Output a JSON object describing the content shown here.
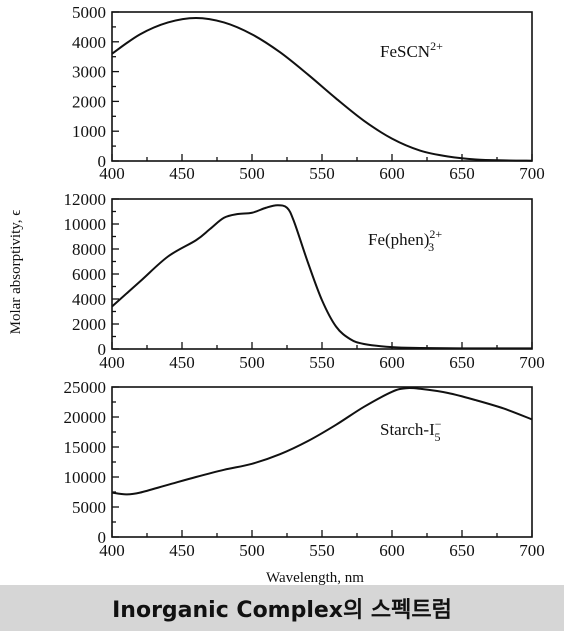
{
  "chart_data": [
    {
      "type": "line",
      "series": [
        {
          "name": "FeSCN²⁺",
          "x": [
            400,
            420,
            440,
            460,
            480,
            500,
            520,
            540,
            560,
            580,
            600,
            620,
            640,
            660,
            680,
            700
          ],
          "y": [
            3600,
            4250,
            4650,
            4800,
            4650,
            4250,
            3650,
            2900,
            2100,
            1350,
            750,
            350,
            150,
            50,
            20,
            10
          ]
        }
      ],
      "label": {
        "text": "FeSCN",
        "sup": "2+"
      },
      "xlim": [
        400,
        700
      ],
      "ylim": [
        0,
        5000
      ],
      "xticks": [
        400,
        450,
        500,
        550,
        600,
        650,
        700
      ],
      "yticks": [
        0,
        1000,
        2000,
        3000,
        4000,
        5000
      ]
    },
    {
      "type": "line",
      "series": [
        {
          "name": "Fe(phen)₃²⁺",
          "x": [
            400,
            420,
            440,
            460,
            470,
            480,
            490,
            500,
            510,
            518,
            525,
            530,
            540,
            550,
            560,
            570,
            580,
            600,
            620,
            650,
            700
          ],
          "y": [
            3400,
            5400,
            7400,
            8700,
            9600,
            10500,
            10800,
            10900,
            11300,
            11500,
            11300,
            10200,
            6900,
            3900,
            1800,
            800,
            400,
            150,
            80,
            50,
            50
          ]
        }
      ],
      "label": {
        "text": "Fe(phen)",
        "sub": "3",
        "sup": "2+"
      },
      "xlim": [
        400,
        700
      ],
      "ylim": [
        0,
        12000
      ],
      "xticks": [
        400,
        450,
        500,
        550,
        600,
        650,
        700
      ],
      "yticks": [
        0,
        2000,
        4000,
        6000,
        8000,
        10000,
        12000
      ]
    },
    {
      "type": "line",
      "series": [
        {
          "name": "Starch-I₅⁻",
          "x": [
            400,
            410,
            420,
            440,
            460,
            480,
            500,
            520,
            540,
            560,
            580,
            600,
            610,
            620,
            640,
            660,
            680,
            700
          ],
          "y": [
            7400,
            7100,
            7400,
            8700,
            10000,
            11200,
            12200,
            13800,
            16000,
            18700,
            21700,
            24200,
            24800,
            24700,
            24000,
            22800,
            21400,
            19600
          ]
        }
      ],
      "label": {
        "text": "Starch-I",
        "sub": "5",
        "sup": "−"
      },
      "xlim": [
        400,
        700
      ],
      "ylim": [
        0,
        25000
      ],
      "xticks": [
        400,
        450,
        500,
        550,
        600,
        650,
        700
      ],
      "yticks": [
        0,
        5000,
        10000,
        15000,
        20000,
        25000
      ]
    }
  ],
  "axes": {
    "xlabel": "Wavelength, nm",
    "ylabel": "Molar absorptivity, ϵ"
  },
  "caption": "Inorganic Complex의 스펙트럼"
}
